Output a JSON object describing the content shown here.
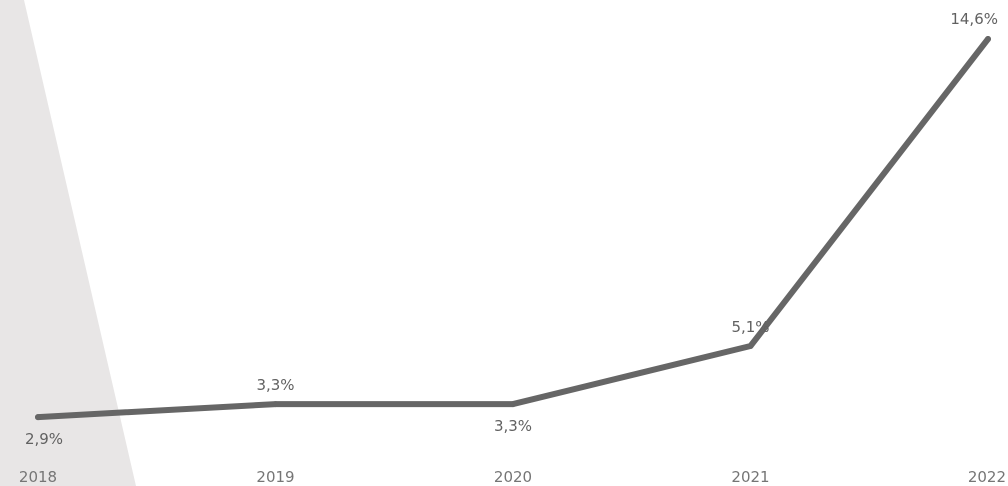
{
  "colors": {
    "line": "#666666",
    "backdrop": "#e8e6e6",
    "tick_text": "#757575",
    "label_text": "#616161"
  },
  "chart_data": {
    "type": "line",
    "categories": [
      "2018",
      "2019",
      "2020",
      "2021",
      "2022"
    ],
    "series": [
      {
        "values": [
          2.9,
          3.3,
          3.3,
          5.1,
          14.6
        ],
        "labels": [
          "2,9%",
          "3,3%",
          "3,3%",
          "5,1%",
          "14,6%"
        ],
        "label_positions": [
          "below",
          "above",
          "below",
          "above",
          "above"
        ]
      }
    ],
    "title": "",
    "xlabel": "",
    "ylabel": "",
    "ylim": [
      2.5,
      14.6
    ],
    "grid": false,
    "legend": "none"
  }
}
